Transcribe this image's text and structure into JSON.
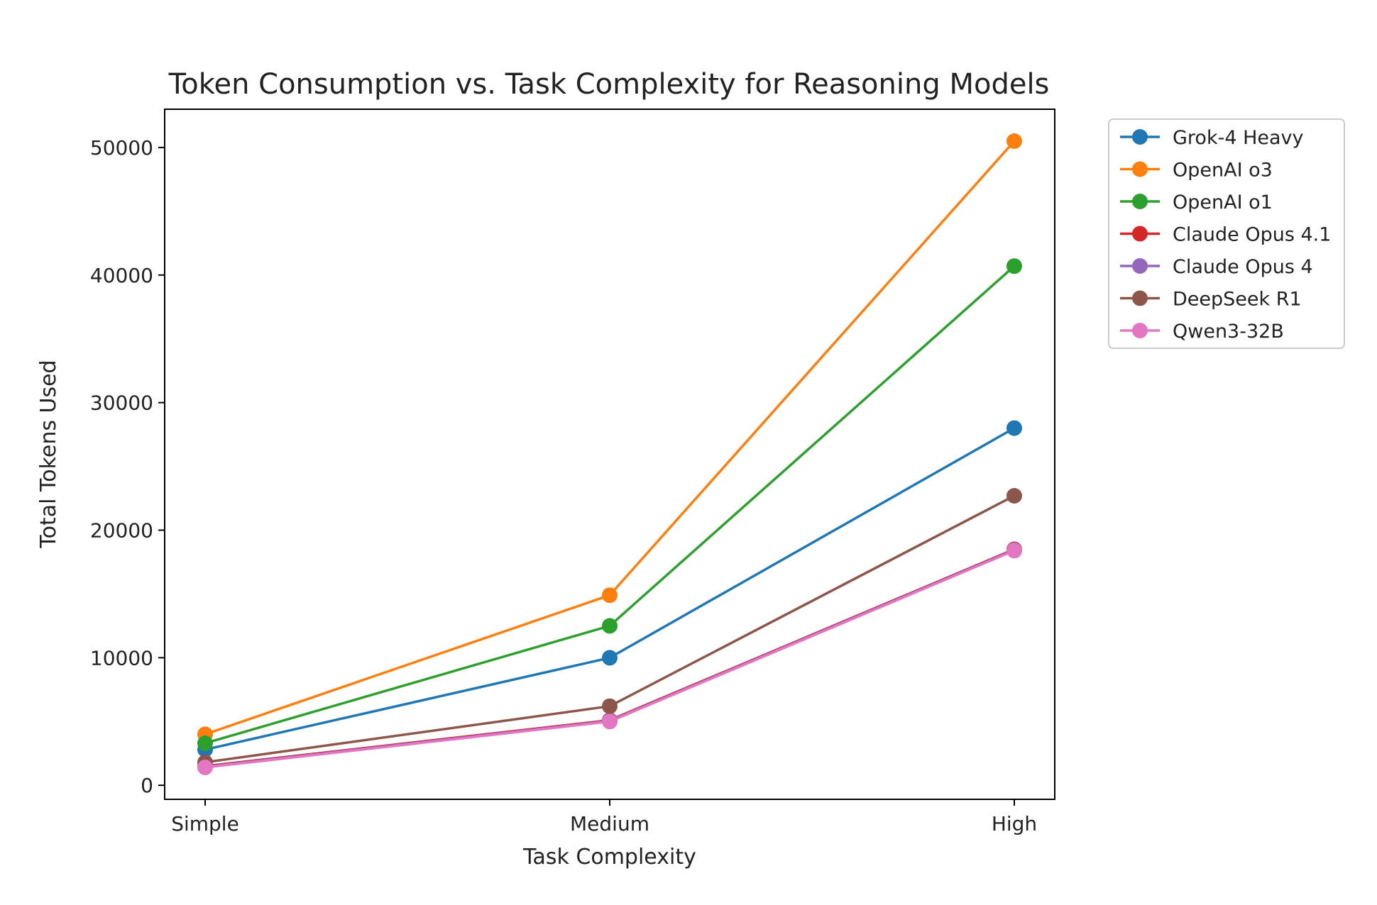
{
  "chart_data": {
    "type": "line",
    "title": "Token Consumption vs. Task Complexity for Reasoning Models",
    "xlabel": "Task Complexity",
    "ylabel": "Total Tokens Used",
    "categories": [
      "Simple",
      "Medium",
      "High"
    ],
    "ylim": [
      -1100,
      53000
    ],
    "yticks": [
      0,
      10000,
      20000,
      30000,
      40000,
      50000
    ],
    "grid": false,
    "legend_position": "outside-top-right",
    "series": [
      {
        "name": "Grok-4 Heavy",
        "color": "#1f77b4",
        "values": [
          2800,
          10000,
          28000
        ]
      },
      {
        "name": "OpenAI o3",
        "color": "#ff7f0e",
        "values": [
          4000,
          14900,
          50500
        ]
      },
      {
        "name": "OpenAI o1",
        "color": "#2ca02c",
        "values": [
          3300,
          12500,
          40700
        ]
      },
      {
        "name": "Claude Opus 4.1",
        "color": "#d62728",
        "values": [
          1500,
          5100,
          18500
        ]
      },
      {
        "name": "Claude Opus 4",
        "color": "#9467bd",
        "values": [
          1450,
          5050,
          18450
        ]
      },
      {
        "name": "DeepSeek R1",
        "color": "#8c564b",
        "values": [
          1800,
          6200,
          22700
        ]
      },
      {
        "name": "Qwen3-32B",
        "color": "#e377c2",
        "values": [
          1400,
          5000,
          18400
        ]
      }
    ]
  }
}
